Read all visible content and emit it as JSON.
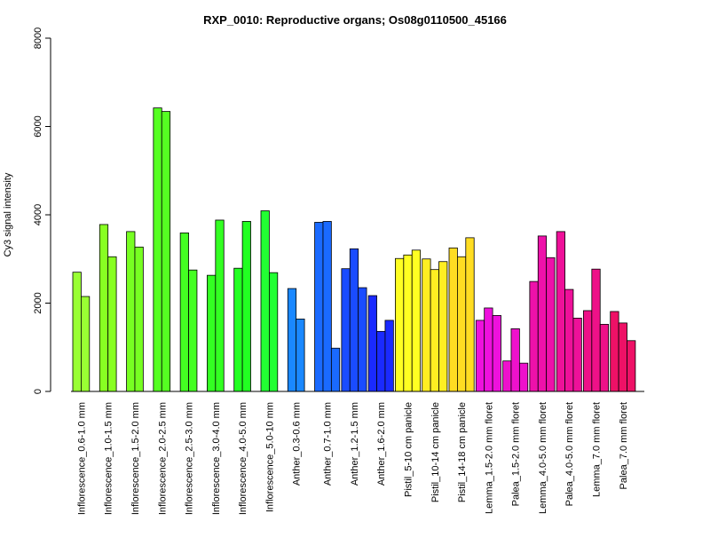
{
  "chart_data": {
    "type": "bar",
    "title": "RXP_0010: Reproductive organs; Os08g0110500_45166",
    "xlabel": "",
    "ylabel": "Cy3 signal intensity",
    "ylim": [
      0,
      8000
    ],
    "yticks": [
      "0",
      "2000",
      "4000",
      "6000",
      "8000"
    ],
    "grid": false,
    "legend": "none",
    "groups": [
      {
        "label": "Inflorescence_0.6-1.0 mm",
        "color": "#99ff33",
        "values": [
          2700,
          2150
        ]
      },
      {
        "label": "Inflorescence_1.0-1.5 mm",
        "color": "#88ff22",
        "values": [
          3780,
          3050
        ]
      },
      {
        "label": "Inflorescence_1.5-2.0 mm",
        "color": "#77ff22",
        "values": [
          3620,
          3270
        ]
      },
      {
        "label": "Inflorescence_2.0-2.5 mm",
        "color": "#55ff22",
        "values": [
          6420,
          6340
        ]
      },
      {
        "label": "Inflorescence_2.5-3.0 mm",
        "color": "#44ff22",
        "values": [
          3590,
          2750
        ]
      },
      {
        "label": "Inflorescence_3.0-4.0 mm",
        "color": "#33ff22",
        "values": [
          2630,
          3880
        ]
      },
      {
        "label": "Inflorescence_4.0-5.0 mm",
        "color": "#22ff22",
        "values": [
          2790,
          3850
        ]
      },
      {
        "label": "Inflorescence_5.0-10 mm",
        "color": "#22ff33",
        "values": [
          4090,
          2690
        ]
      },
      {
        "label": "Anther_0.3-0.6 mm",
        "color": "#1a88ff",
        "values": [
          2330,
          1640
        ]
      },
      {
        "label": "Anther_0.7-1.0 mm",
        "color": "#1a6aff",
        "values": [
          3830,
          3850,
          980
        ]
      },
      {
        "label": "Anther_1.2-1.5 mm",
        "color": "#1a4cff",
        "values": [
          2780,
          3230,
          2350
        ]
      },
      {
        "label": "Anther_1.6-2.0 mm",
        "color": "#1a2aff",
        "values": [
          2170,
          1360,
          1610
        ]
      },
      {
        "label": "Pistil_5-10 cm panicle",
        "color": "#ffff22",
        "values": [
          3010,
          3090,
          3200
        ]
      },
      {
        "label": "Pistil_10-14 cm panicle",
        "color": "#ffee22",
        "values": [
          3000,
          2760,
          2940
        ]
      },
      {
        "label": "Pistil_14-18 cm panicle",
        "color": "#ffdd22",
        "values": [
          3250,
          3050,
          3480
        ]
      },
      {
        "label": "Lemma_1.5-2.0 mm floret",
        "color": "#ee11dd",
        "values": [
          1610,
          1890,
          1720
        ]
      },
      {
        "label": "Palea_1.5-2.0 mm floret",
        "color": "#ee11cc",
        "values": [
          690,
          1420,
          640
        ]
      },
      {
        "label": "Lemma_4.0-5.0 mm floret",
        "color": "#ee11aa",
        "values": [
          2490,
          3520,
          3030
        ]
      },
      {
        "label": "Palea_4.0-5.0 mm floret",
        "color": "#ee1199",
        "values": [
          3620,
          2310,
          1660
        ]
      },
      {
        "label": "Lemma_7.0 mm floret",
        "color": "#ee1188",
        "values": [
          1830,
          2770,
          1520
        ]
      },
      {
        "label": "Palea_7.0 mm floret",
        "color": "#ee1166",
        "values": [
          1810,
          1550,
          1150
        ]
      }
    ]
  }
}
